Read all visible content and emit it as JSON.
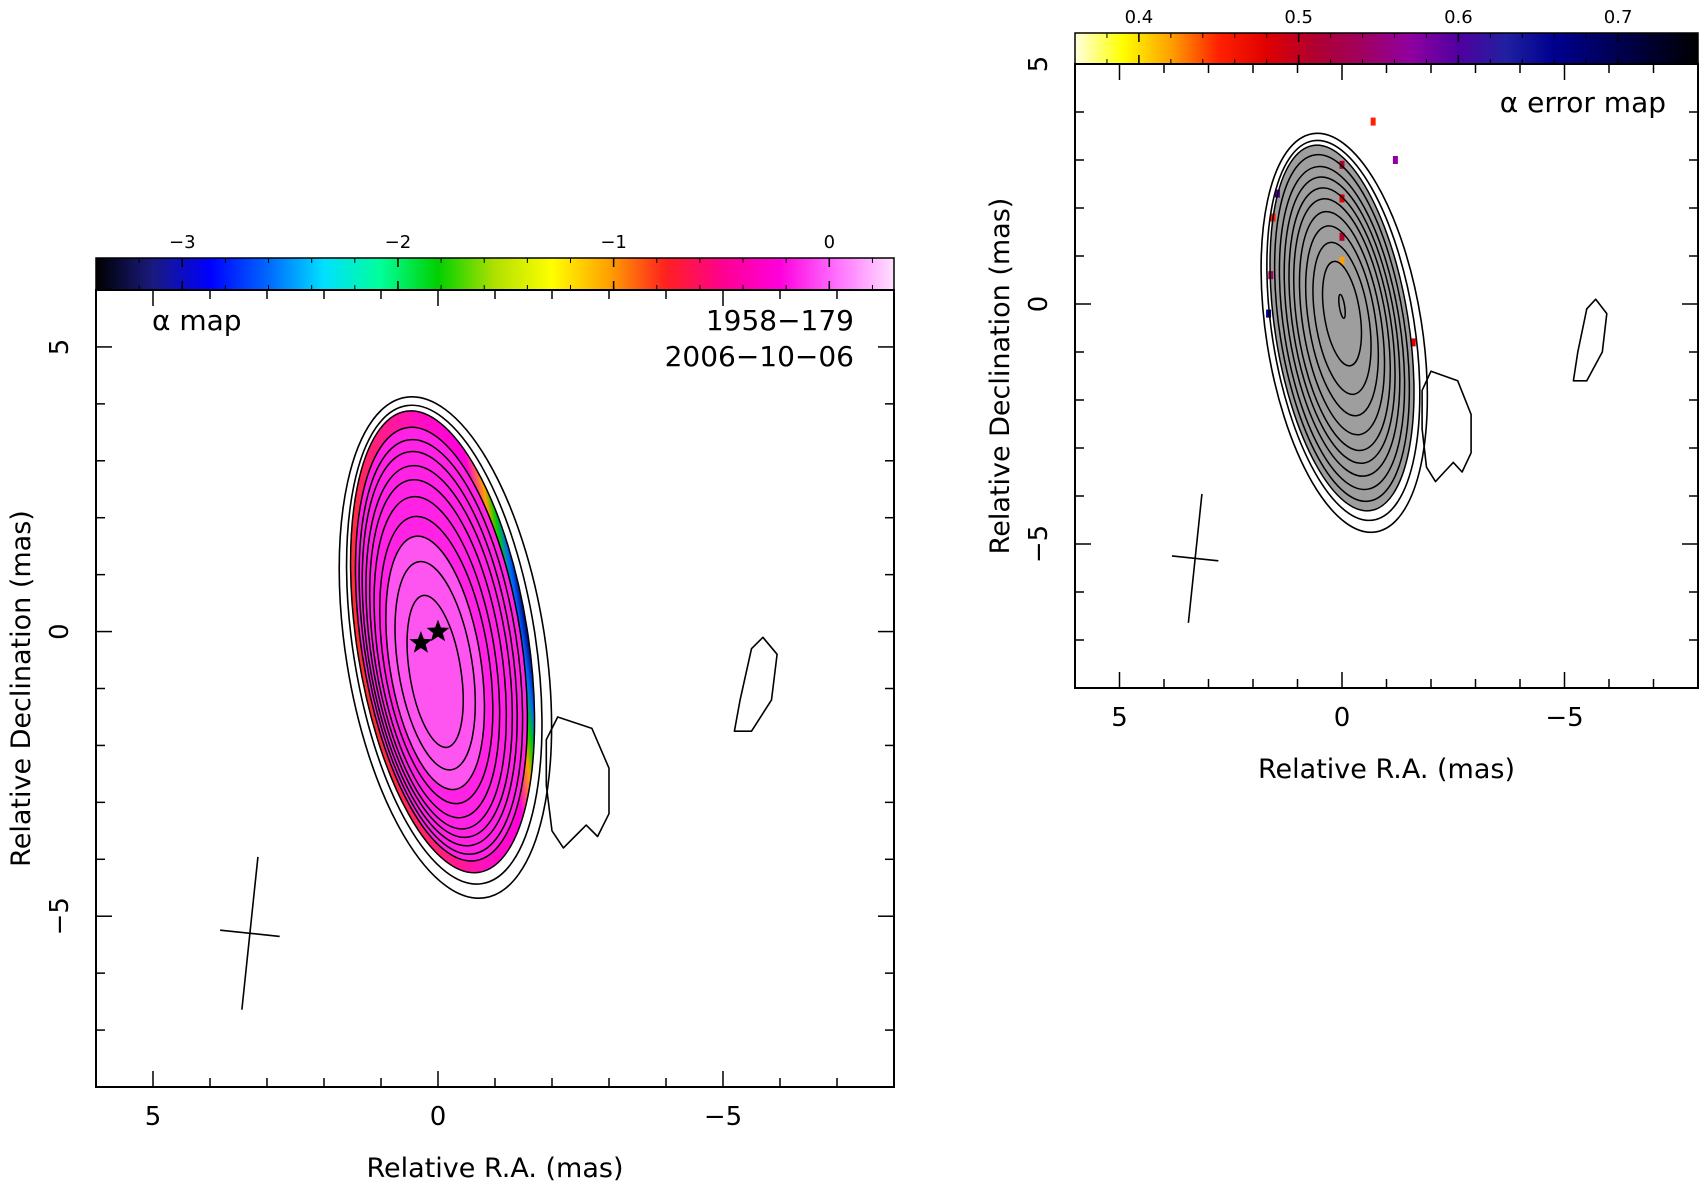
{
  "chart_data": [
    {
      "type": "heatmap",
      "panel": "alpha map",
      "title": "α map",
      "source_name": "1958−179",
      "epoch": "2006−10−06",
      "xlabel": "Relative R.A. (mas)",
      "ylabel": "Relative Declination (mas)",
      "xlim": [
        6,
        -8
      ],
      "ylim": [
        -8,
        6
      ],
      "x_ticks": [
        5,
        0,
        -5
      ],
      "x_tick_labels": [
        "5",
        "0",
        "−5"
      ],
      "y_ticks": [
        -5,
        0,
        5
      ],
      "y_tick_labels": [
        "−5",
        "0",
        "5"
      ],
      "colorbar": {
        "range": [
          -3.4,
          0.3
        ],
        "ticks": [
          -3,
          -2,
          -1,
          0
        ],
        "tick_labels": [
          "−3",
          "−2",
          "−1",
          "0"
        ],
        "colors": [
          "#000000",
          "#1a1a80",
          "#0000ff",
          "#0066ff",
          "#00e0ff",
          "#00ff99",
          "#00d000",
          "#b0e000",
          "#ffff00",
          "#ffa000",
          "#ff2020",
          "#ff0090",
          "#ff00dd",
          "#ff70ff",
          "#ffe0ff"
        ]
      },
      "source": {
        "center": [
          0,
          0
        ],
        "ellipse_levels": [
          {
            "a": 0.45,
            "b": 1.35,
            "cx": 0.05,
            "cy": -0.7
          },
          {
            "a": 0.65,
            "b": 1.85,
            "cx": 0.05,
            "cy": -0.6
          },
          {
            "a": 0.8,
            "b": 2.25,
            "cx": 0.05,
            "cy": -0.55
          },
          {
            "a": 0.92,
            "b": 2.55,
            "cx": 0.03,
            "cy": -0.5
          },
          {
            "a": 1.02,
            "b": 2.85,
            "cx": 0.02,
            "cy": -0.45
          },
          {
            "a": 1.11,
            "b": 3.1,
            "cx": 0.0,
            "cy": -0.4
          },
          {
            "a": 1.19,
            "b": 3.3,
            "cx": -0.02,
            "cy": -0.35
          },
          {
            "a": 1.26,
            "b": 3.5,
            "cx": -0.03,
            "cy": -0.3
          },
          {
            "a": 1.33,
            "b": 3.68,
            "cx": -0.05,
            "cy": -0.27
          },
          {
            "a": 1.4,
            "b": 3.85,
            "cx": -0.06,
            "cy": -0.22
          },
          {
            "a": 1.5,
            "b": 4.1,
            "cx": -0.08,
            "cy": -0.18
          }
        ],
        "core_stars": [
          [
            0.3,
            -0.2
          ],
          [
            0.0,
            0.0
          ]
        ]
      },
      "secondary_components": [
        {
          "name": "component-1",
          "outline": [
            [
              -2.1,
              -1.5
            ],
            [
              -2.7,
              -1.7
            ],
            [
              -3.0,
              -2.4
            ],
            [
              -3.0,
              -3.2
            ],
            [
              -2.8,
              -3.6
            ],
            [
              -2.6,
              -3.4
            ],
            [
              -2.4,
              -3.6
            ],
            [
              -2.2,
              -3.8
            ],
            [
              -2.0,
              -3.5
            ],
            [
              -1.9,
              -2.7
            ],
            [
              -1.9,
              -1.9
            ]
          ]
        },
        {
          "name": "component-2",
          "outline": [
            [
              -5.7,
              -0.1
            ],
            [
              -5.95,
              -0.4
            ],
            [
              -5.85,
              -1.2
            ],
            [
              -5.5,
              -1.75
            ],
            [
              -5.2,
              -1.75
            ],
            [
              -5.3,
              -1.2
            ],
            [
              -5.5,
              -0.3
            ]
          ]
        }
      ],
      "beam": {
        "center": [
          3.3,
          -5.3
        ],
        "major": 2.7,
        "minor": 1.05,
        "pa_deg": 6
      }
    },
    {
      "type": "heatmap",
      "panel": "alpha error map",
      "title": "α error map",
      "xlabel": "Relative R.A. (mas)",
      "ylabel": "Relative Declination (mas)",
      "xlim": [
        6,
        -8
      ],
      "ylim": [
        -8,
        5
      ],
      "x_ticks": [
        5,
        0,
        -5
      ],
      "x_tick_labels": [
        "5",
        "0",
        "−5"
      ],
      "y_ticks": [
        -5,
        0,
        5
      ],
      "y_tick_labels": [
        "−5",
        "0",
        "5"
      ],
      "colorbar": {
        "range": [
          0.36,
          0.75
        ],
        "ticks": [
          0.4,
          0.5,
          0.6,
          0.7
        ],
        "tick_labels": [
          "0.4",
          "0.5",
          "0.6",
          "0.7"
        ],
        "colors": [
          "#ffffe0",
          "#ffff00",
          "#ffa000",
          "#ff2000",
          "#e00000",
          "#b00030",
          "#a00060",
          "#9000a0",
          "#5000a0",
          "#2020a0",
          "#000090",
          "#000060",
          "#000030",
          "#000000"
        ]
      },
      "fill_color": "#9e9e9e",
      "source": {
        "center": [
          0,
          0
        ],
        "ellipse_levels": [
          {
            "a": 0.06,
            "b": 0.25,
            "cx": 0.0,
            "cy": -0.05
          },
          {
            "a": 0.4,
            "b": 1.1,
            "cx": 0.0,
            "cy": -0.2
          },
          {
            "a": 0.6,
            "b": 1.6,
            "cx": 0.0,
            "cy": -0.3
          },
          {
            "a": 0.75,
            "b": 2.0,
            "cx": 0.0,
            "cy": -0.35
          },
          {
            "a": 0.88,
            "b": 2.35,
            "cx": 0.0,
            "cy": -0.4
          },
          {
            "a": 1.0,
            "b": 2.65,
            "cx": 0.0,
            "cy": -0.43
          },
          {
            "a": 1.1,
            "b": 2.9,
            "cx": 0.0,
            "cy": -0.45
          },
          {
            "a": 1.2,
            "b": 3.15,
            "cx": 0.0,
            "cy": -0.47
          },
          {
            "a": 1.3,
            "b": 3.4,
            "cx": 0.0,
            "cy": -0.5
          },
          {
            "a": 1.4,
            "b": 3.65,
            "cx": 0.0,
            "cy": -0.5
          },
          {
            "a": 1.5,
            "b": 3.85,
            "cx": 0.0,
            "cy": -0.5
          }
        ]
      },
      "secondary_components": [
        {
          "name": "component-1",
          "outline": [
            [
              -2.0,
              -1.4
            ],
            [
              -2.6,
              -1.6
            ],
            [
              -2.9,
              -2.3
            ],
            [
              -2.9,
              -3.1
            ],
            [
              -2.7,
              -3.5
            ],
            [
              -2.5,
              -3.3
            ],
            [
              -2.3,
              -3.5
            ],
            [
              -2.1,
              -3.7
            ],
            [
              -1.9,
              -3.4
            ],
            [
              -1.8,
              -2.6
            ],
            [
              -1.8,
              -1.8
            ]
          ]
        },
        {
          "name": "component-2",
          "outline": [
            [
              -5.7,
              0.1
            ],
            [
              -5.95,
              -0.2
            ],
            [
              -5.85,
              -1.0
            ],
            [
              -5.5,
              -1.6
            ],
            [
              -5.2,
              -1.6
            ],
            [
              -5.3,
              -1.0
            ],
            [
              -5.5,
              -0.1
            ]
          ]
        }
      ],
      "beam": {
        "center": [
          3.3,
          -5.3
        ],
        "major": 2.7,
        "minor": 1.05,
        "pa_deg": 6
      }
    }
  ]
}
